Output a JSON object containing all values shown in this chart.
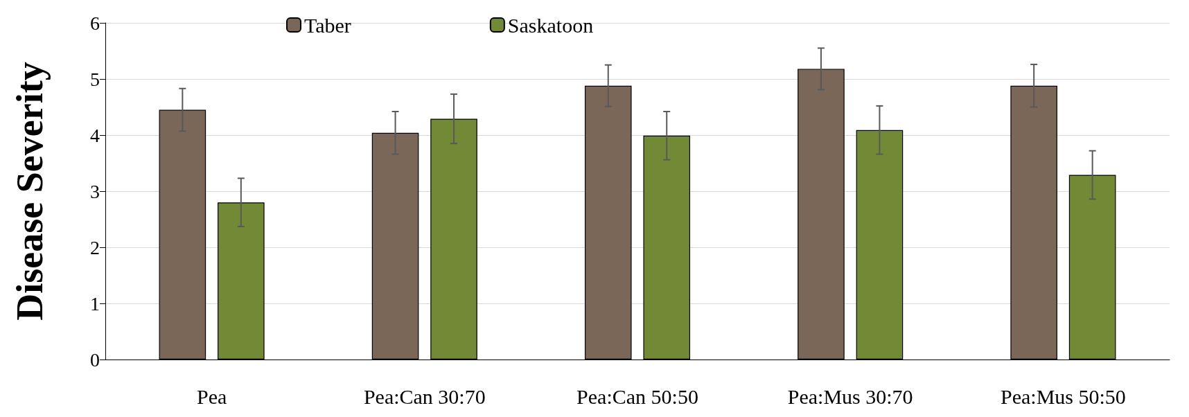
{
  "chart_data": {
    "type": "bar",
    "ylabel": "Disease Severity",
    "categories": [
      "Pea",
      "Pea:Can 30:70",
      "Pea:Can 50:50",
      "Pea:Mus 30:70",
      "Pea:Mus 50:50"
    ],
    "series": [
      {
        "name": "Taber",
        "color": "#7b6758",
        "values": [
          4.45,
          4.04,
          4.88,
          5.18,
          4.88
        ],
        "errors": [
          0.38,
          0.38,
          0.37,
          0.37,
          0.38
        ]
      },
      {
        "name": "Saskatoon",
        "color": "#728a35",
        "values": [
          2.8,
          4.29,
          3.99,
          4.09,
          3.29
        ],
        "errors": [
          0.43,
          0.44,
          0.43,
          0.43,
          0.43
        ]
      }
    ],
    "ylim": [
      0,
      6
    ],
    "yticks": [
      0,
      1,
      2,
      3,
      4,
      5,
      6
    ],
    "grid": "y",
    "legend": "top"
  }
}
